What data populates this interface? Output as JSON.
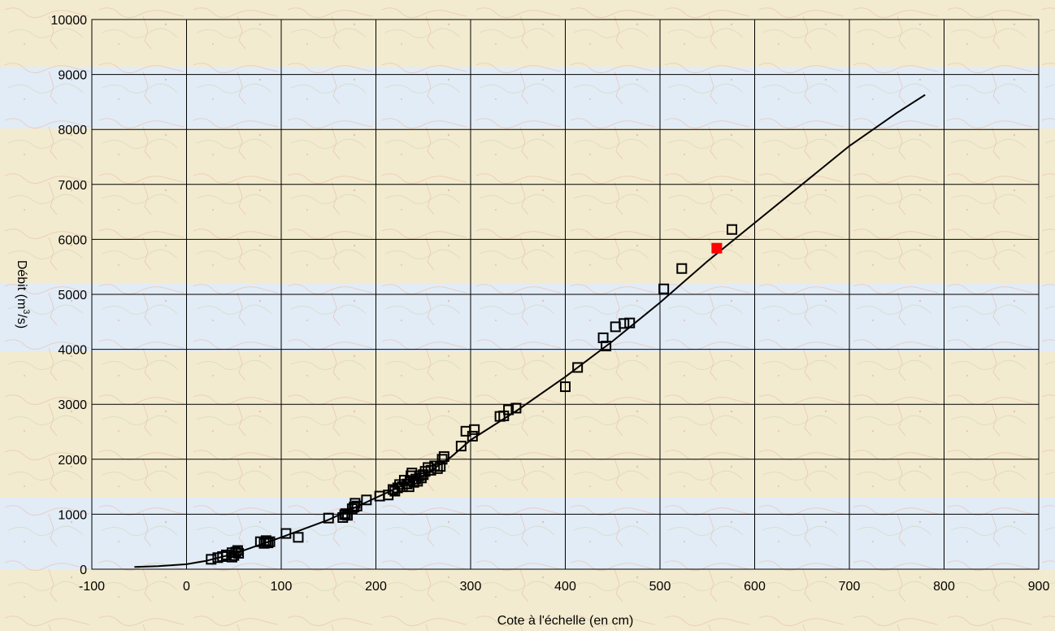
{
  "chart_data": {
    "type": "scatter",
    "xlabel": "Cote à l'échelle (en cm)",
    "ylabel_prefix": "Débit (m",
    "ylabel_sup": "3",
    "ylabel_suffix": "/s)",
    "xlim": [
      -100,
      900
    ],
    "ylim": [
      0,
      10000
    ],
    "x_ticks": [
      -100,
      0,
      100,
      200,
      300,
      400,
      500,
      600,
      700,
      800,
      900
    ],
    "y_ticks": [
      0,
      1000,
      2000,
      3000,
      4000,
      5000,
      6000,
      7000,
      8000,
      9000,
      10000
    ],
    "grid": true,
    "colors": {
      "grid": "#000000",
      "curve": "#000000",
      "marker": "#000000",
      "highlight": "#ff0000",
      "background_warm": "#f3ebcf",
      "background_blue": "#e2ecf6"
    },
    "series": [
      {
        "kind": "markers",
        "marker": "hollow-square",
        "points": [
          [
            26,
            180
          ],
          [
            33,
            210
          ],
          [
            38,
            230
          ],
          [
            42,
            260
          ],
          [
            48,
            220
          ],
          [
            48,
            300
          ],
          [
            50,
            250
          ],
          [
            52,
            310
          ],
          [
            54,
            340
          ],
          [
            55,
            290
          ],
          [
            78,
            500
          ],
          [
            82,
            470
          ],
          [
            84,
            520
          ],
          [
            86,
            480
          ],
          [
            88,
            500
          ],
          [
            105,
            650
          ],
          [
            118,
            580
          ],
          [
            150,
            930
          ],
          [
            165,
            940
          ],
          [
            167,
            990
          ],
          [
            168,
            1010
          ],
          [
            170,
            980
          ],
          [
            175,
            1100
          ],
          [
            177,
            1130
          ],
          [
            178,
            1200
          ],
          [
            180,
            1150
          ],
          [
            190,
            1260
          ],
          [
            204,
            1330
          ],
          [
            213,
            1350
          ],
          [
            218,
            1450
          ],
          [
            220,
            1420
          ],
          [
            223,
            1480
          ],
          [
            225,
            1540
          ],
          [
            228,
            1500
          ],
          [
            230,
            1620
          ],
          [
            233,
            1550
          ],
          [
            235,
            1500
          ],
          [
            236,
            1610
          ],
          [
            237,
            1700
          ],
          [
            238,
            1750
          ],
          [
            240,
            1580
          ],
          [
            242,
            1640
          ],
          [
            244,
            1600
          ],
          [
            246,
            1700
          ],
          [
            248,
            1660
          ],
          [
            250,
            1720
          ],
          [
            252,
            1780
          ],
          [
            255,
            1850
          ],
          [
            258,
            1800
          ],
          [
            262,
            1880
          ],
          [
            265,
            1830
          ],
          [
            268,
            1870
          ],
          [
            270,
            2000
          ],
          [
            272,
            2050
          ],
          [
            290,
            2240
          ],
          [
            295,
            2510
          ],
          [
            302,
            2420
          ],
          [
            304,
            2540
          ],
          [
            331,
            2780
          ],
          [
            335,
            2790
          ],
          [
            340,
            2900
          ],
          [
            348,
            2930
          ],
          [
            400,
            3320
          ],
          [
            413,
            3670
          ],
          [
            440,
            4210
          ],
          [
            443,
            4060
          ],
          [
            453,
            4410
          ],
          [
            462,
            4470
          ],
          [
            468,
            4480
          ],
          [
            504,
            5100
          ],
          [
            523,
            5470
          ],
          [
            576,
            6180
          ]
        ]
      },
      {
        "kind": "markers",
        "marker": "filled-square",
        "points": [
          [
            560,
            5840
          ]
        ]
      },
      {
        "kind": "curve",
        "points": [
          [
            -55,
            40
          ],
          [
            -30,
            55
          ],
          [
            0,
            90
          ],
          [
            20,
            150
          ],
          [
            50,
            280
          ],
          [
            100,
            580
          ],
          [
            150,
            900
          ],
          [
            200,
            1300
          ],
          [
            250,
            1700
          ],
          [
            280,
            2050
          ],
          [
            300,
            2350
          ],
          [
            350,
            2900
          ],
          [
            400,
            3500
          ],
          [
            450,
            4150
          ],
          [
            500,
            4850
          ],
          [
            550,
            5600
          ],
          [
            600,
            6300
          ],
          [
            650,
            7000
          ],
          [
            700,
            7700
          ],
          [
            750,
            8300
          ],
          [
            780,
            8630
          ]
        ]
      }
    ]
  }
}
